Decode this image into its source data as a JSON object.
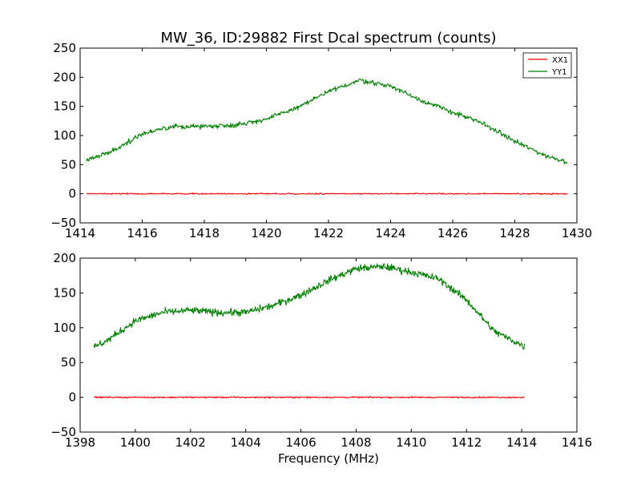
{
  "figure": {
    "title": "MW_36, ID:29882 First Dcal spectrum (counts)"
  },
  "colors": {
    "XX1": "#ff0000",
    "YY1": "#008000",
    "axes": "#000000",
    "background": "#ffffff"
  },
  "chart_data": [
    {
      "type": "line",
      "title": "MW_36, ID:29882 First Dcal spectrum (counts)",
      "xlabel": "",
      "ylabel": "",
      "xlim": [
        1414,
        1430
      ],
      "ylim": [
        -50,
        250
      ],
      "xticks": [
        1414,
        1416,
        1418,
        1420,
        1422,
        1424,
        1426,
        1428,
        1430
      ],
      "yticks": [
        -50,
        0,
        50,
        100,
        150,
        200,
        250
      ],
      "grid": false,
      "legend": {
        "position": "top-right",
        "entries": [
          "XX1",
          "YY1"
        ]
      },
      "noise": {
        "XX1": 1.0,
        "YY1": 4.0
      },
      "series": [
        {
          "name": "XX1",
          "color": "#ff0000",
          "x": [
            1414.2,
            1429.7
          ],
          "y": [
            0,
            0
          ]
        },
        {
          "name": "YY1",
          "color": "#008000",
          "x": [
            1414.2,
            1415.0,
            1416.0,
            1417.0,
            1418.0,
            1419.0,
            1420.0,
            1421.0,
            1422.0,
            1423.0,
            1424.0,
            1425.0,
            1426.0,
            1427.0,
            1428.0,
            1429.0,
            1429.7
          ],
          "y": [
            58,
            72,
            103,
            115,
            116,
            118,
            128,
            148,
            175,
            195,
            185,
            160,
            140,
            120,
            90,
            65,
            55
          ]
        }
      ]
    },
    {
      "type": "line",
      "title": "",
      "xlabel": "Frequency (MHz)",
      "ylabel": "",
      "xlim": [
        1398,
        1416
      ],
      "ylim": [
        -50,
        200
      ],
      "xticks": [
        1398,
        1400,
        1402,
        1404,
        1406,
        1408,
        1410,
        1412,
        1414,
        1416
      ],
      "yticks": [
        -50,
        0,
        50,
        100,
        150,
        200
      ],
      "grid": false,
      "legend": null,
      "noise": {
        "XX1": 1.0,
        "YY1": 5.0
      },
      "series": [
        {
          "name": "XX1",
          "color": "#ff0000",
          "x": [
            1398.5,
            1414.1
          ],
          "y": [
            0,
            0
          ]
        },
        {
          "name": "YY1",
          "color": "#008000",
          "x": [
            1398.5,
            1399.0,
            1400.0,
            1401.0,
            1402.0,
            1403.0,
            1404.0,
            1405.0,
            1406.0,
            1407.0,
            1408.0,
            1409.0,
            1410.0,
            1411.0,
            1412.0,
            1413.0,
            1414.1
          ],
          "y": [
            72,
            82,
            110,
            122,
            125,
            122,
            122,
            132,
            147,
            168,
            185,
            188,
            180,
            170,
            140,
            95,
            73
          ]
        }
      ]
    }
  ]
}
